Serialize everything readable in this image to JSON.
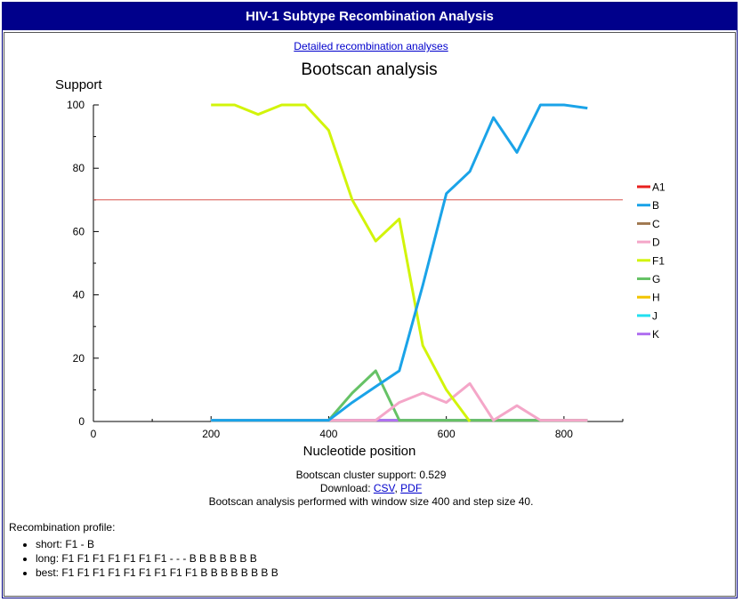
{
  "header": {
    "title": "HIV-1 Subtype Recombination Analysis"
  },
  "links": {
    "detailed": "Detailed recombination analyses"
  },
  "chart_data": {
    "type": "line",
    "title": "Bootscan analysis",
    "ylabel": "Support",
    "xlabel": "Nucleotide position",
    "xlim": [
      0,
      900
    ],
    "ylim": [
      0,
      100
    ],
    "xticks": [
      0,
      200,
      400,
      600,
      800
    ],
    "yticks": [
      0,
      20,
      40,
      60,
      80,
      100
    ],
    "threshold": 70,
    "threshold_color": "#d9534f",
    "legend_position": "right",
    "series": [
      {
        "name": "A1",
        "color": "#e8201e",
        "x": [
          200,
          840
        ],
        "y": [
          0.4,
          0.4
        ]
      },
      {
        "name": "B",
        "color": "#1aa3e8",
        "x": [
          200,
          240,
          280,
          320,
          360,
          400,
          440,
          480,
          520,
          560,
          600,
          640,
          680,
          720,
          760,
          800,
          840
        ],
        "y": [
          0.4,
          0.4,
          0.4,
          0.4,
          0.4,
          0.4,
          6,
          11,
          16,
          43,
          72,
          79,
          96,
          85,
          100,
          100,
          99
        ]
      },
      {
        "name": "C",
        "color": "#a07850",
        "x": [
          200,
          840
        ],
        "y": [
          0.4,
          0.4
        ]
      },
      {
        "name": "D",
        "color": "#f4a6c8",
        "x": [
          200,
          480,
          520,
          560,
          600,
          640,
          680,
          720,
          760,
          840
        ],
        "y": [
          0.4,
          0.4,
          6,
          9,
          6,
          12,
          0.4,
          5,
          0.4,
          0.4
        ]
      },
      {
        "name": "F1",
        "color": "#d2f40a",
        "x": [
          200,
          240,
          280,
          320,
          360,
          400,
          440,
          480,
          520,
          560,
          600,
          640
        ],
        "y": [
          100,
          100,
          97,
          100,
          100,
          92,
          70,
          57,
          64,
          24,
          10,
          0
        ]
      },
      {
        "name": "G",
        "color": "#66c266",
        "x": [
          200,
          400,
          440,
          480,
          520,
          840
        ],
        "y": [
          0.4,
          0.4,
          9,
          16,
          0.4,
          0.4
        ]
      },
      {
        "name": "H",
        "color": "#f2c400",
        "x": [
          200,
          840
        ],
        "y": [
          0.4,
          0.4
        ]
      },
      {
        "name": "J",
        "color": "#22e0f0",
        "x": [
          200,
          840
        ],
        "y": [
          0.4,
          0.4
        ]
      },
      {
        "name": "K",
        "color": "#b070f0",
        "x": [
          200,
          840
        ],
        "y": [
          0.4,
          0.4
        ]
      }
    ]
  },
  "info": {
    "cluster_support": "Bootscan cluster support: 0.529",
    "download_label": "Download:",
    "csv": "CSV",
    "pdf": "PDF",
    "comma": ",",
    "window_info": "Bootscan analysis performed with window size 400 and step size 40."
  },
  "profile": {
    "heading": "Recombination profile:",
    "items": [
      "short: F1 - B",
      "long: F1 F1 F1 F1 F1 F1 F1 - - - B B B B B B B",
      "best: F1 F1 F1 F1 F1 F1 F1 F1 F1 B B B B B B B B"
    ]
  }
}
